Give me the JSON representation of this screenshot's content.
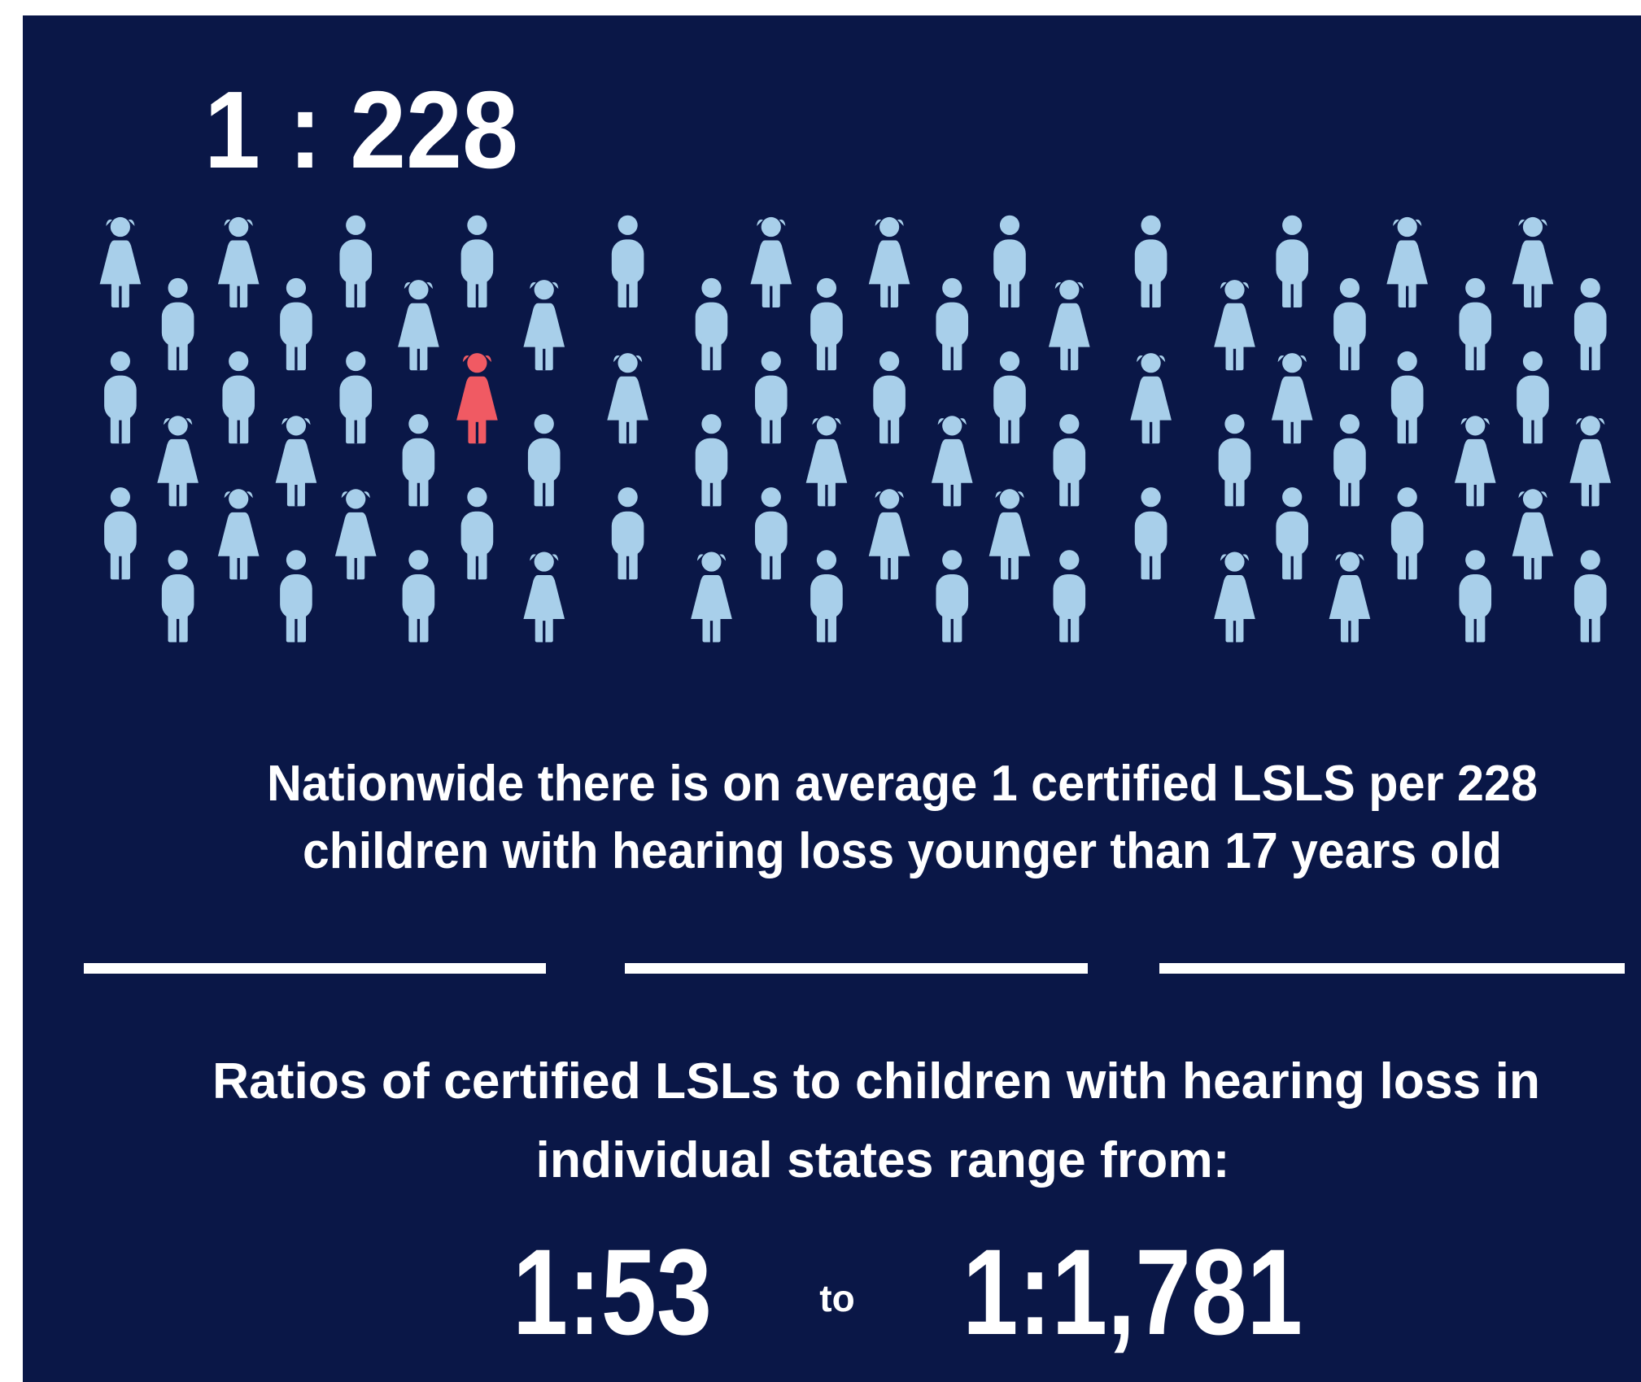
{
  "headline": "1 : 228",
  "description": [
    "Nationwide there is on average 1 certified LSLS per 228",
    "children with hearing loss younger than 17 years old"
  ],
  "range_text": [
    "Ratios of certified LSLs to children with hearing loss in",
    "individual states range from:"
  ],
  "range": {
    "low": "1:53",
    "connector": "to",
    "high": "1:1,781"
  }
}
